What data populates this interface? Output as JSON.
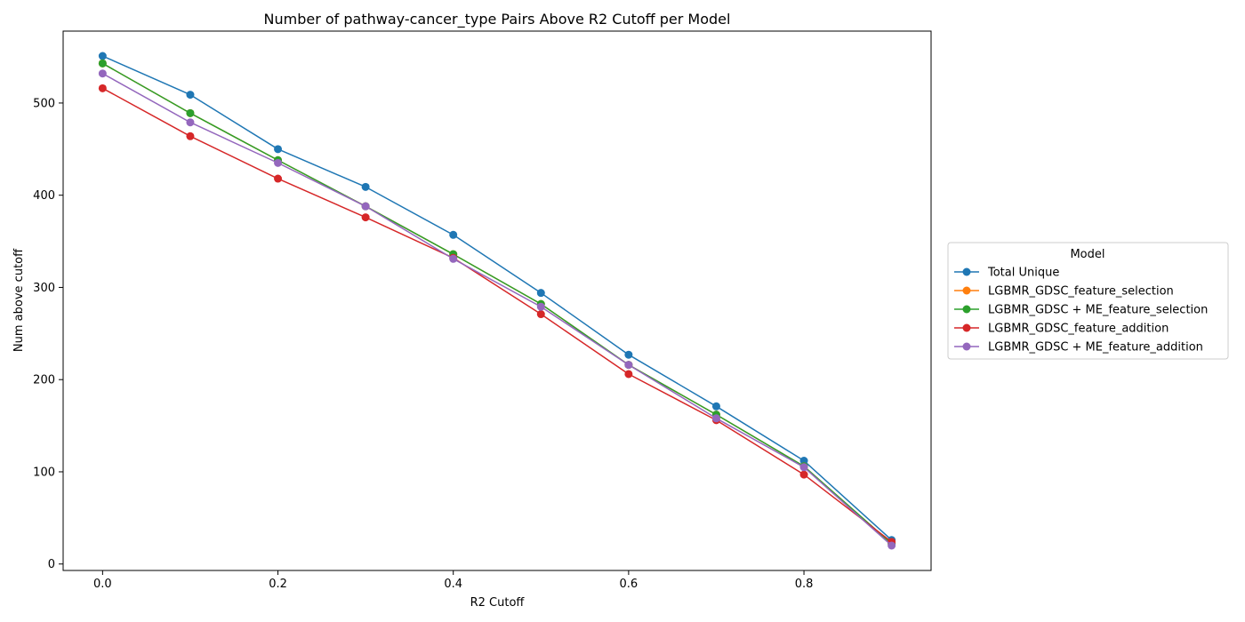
{
  "chart_data": {
    "type": "line",
    "title": "Number of pathway-cancer_type Pairs Above R2 Cutoff per Model",
    "xlabel": "R2 Cutoff",
    "ylabel": "Num above cutoff",
    "x": [
      0.0,
      0.1,
      0.2,
      0.3,
      0.4,
      0.5,
      0.6,
      0.7,
      0.8,
      0.9
    ],
    "xlim": [
      -0.045,
      0.945
    ],
    "ylim": [
      -7,
      578
    ],
    "xticks": [
      0.0,
      0.2,
      0.4,
      0.6,
      0.8
    ],
    "xtick_labels": [
      "0.0",
      "0.2",
      "0.4",
      "0.6",
      "0.8"
    ],
    "yticks": [
      0,
      100,
      200,
      300,
      400,
      500
    ],
    "ytick_labels": [
      "0",
      "100",
      "200",
      "300",
      "400",
      "500"
    ],
    "grid": false,
    "legend": {
      "title": "Model",
      "placement": "outside-right"
    },
    "series": [
      {
        "name": "Total Unique",
        "color": "#1f77b4",
        "values": [
          551,
          509,
          450,
          409,
          357,
          294,
          227,
          171,
          112,
          26
        ]
      },
      {
        "name": "LGBMR_GDSC_feature_selection",
        "color": "#ff7f0e",
        "values": [
          543,
          489,
          438,
          388,
          336,
          282,
          216,
          162,
          106,
          22
        ]
      },
      {
        "name": "LGBMR_GDSC + ME_feature_selection",
        "color": "#2ca02c",
        "values": [
          543,
          489,
          438,
          388,
          336,
          282,
          216,
          162,
          106,
          22
        ]
      },
      {
        "name": "LGBMR_GDSC_feature_addition",
        "color": "#d62728",
        "values": [
          516,
          464,
          418,
          376,
          332,
          271,
          206,
          156,
          97,
          24
        ]
      },
      {
        "name": "LGBMR_GDSC + ME_feature_addition",
        "color": "#9467bd",
        "values": [
          532,
          479,
          435,
          388,
          331,
          279,
          216,
          158,
          105,
          20
        ]
      }
    ]
  }
}
